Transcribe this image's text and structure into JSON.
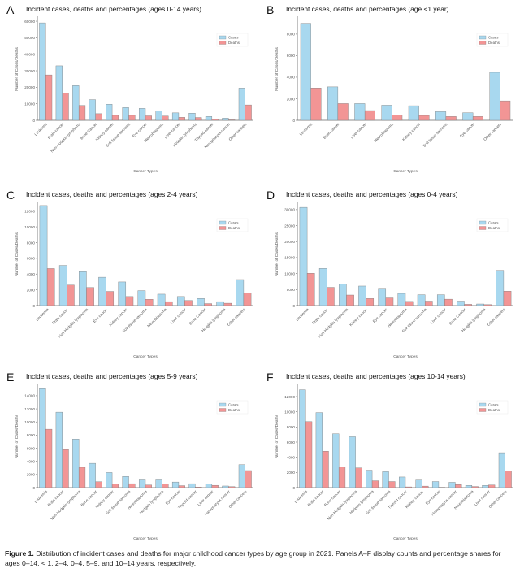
{
  "figure": {
    "caption_label": "Figure 1.",
    "caption_text": " Distribution of incident cases and deaths for major childhood cancer types by age group in 2021. Panels A–F display counts and percentage shares for ages 0–14, < 1, 2–4, 0–4, 5–9, and 10–14 years, respectively."
  },
  "colors": {
    "cases": "#a8d8ef",
    "deaths": "#f29595",
    "bar_edge": "#7a7a7a",
    "axis": "#666666"
  },
  "chart_data": [
    {
      "panel": "A",
      "type": "bar",
      "title": "Incident cases, deaths and percentages (ages 0-14 years)",
      "xlabel": "Cancer Types",
      "ylabel": "Number of Cases/Deaths",
      "ylim": [
        0,
        62000
      ],
      "yticks": [
        0,
        10000,
        20000,
        30000,
        40000,
        50000,
        60000
      ],
      "legend": "top-right",
      "grid": false,
      "values_note": "estimated from gridlines; percentage data labels illegible",
      "categories": [
        "Leukemia",
        "Brain cancer",
        "Non-Hodgkin lymphoma",
        "Bone Cancer",
        "Kidney cancer",
        "Soft tissue sarcoma",
        "Eye cancer",
        "Neuroblastoma",
        "Liver cancer",
        "Hodgkin lymphoma",
        "Thyroid cancer",
        "Nasopharynx cancer",
        "Other cancers"
      ],
      "series": [
        {
          "name": "Cases",
          "values": [
            59000,
            33000,
            21000,
            12500,
            9700,
            7700,
            7200,
            5800,
            4500,
            4300,
            2300,
            1300,
            19500
          ]
        },
        {
          "name": "Deaths",
          "values": [
            27500,
            16500,
            9000,
            4000,
            3000,
            3000,
            2700,
            2600,
            1800,
            1700,
            600,
            300,
            9300
          ]
        }
      ]
    },
    {
      "panel": "B",
      "type": "bar",
      "title": "Incident cases, deaths and percentages (age <1 year)",
      "xlabel": "Cancer Types",
      "ylabel": "Number of Cases/Deaths",
      "ylim": [
        0,
        9500
      ],
      "yticks": [
        0,
        2000,
        4000,
        6000,
        8000
      ],
      "legend": "top-right",
      "grid": false,
      "values_note": "estimated from gridlines; percentage data labels illegible",
      "categories": [
        "Leukemia",
        "Brain cancer",
        "Liver cancer",
        "Neuroblastoma",
        "Kidney cancer",
        "Soft tissue sarcoma",
        "Eye cancer",
        "Other cancers"
      ],
      "series": [
        {
          "name": "Cases",
          "values": [
            9000,
            3100,
            1550,
            1400,
            1350,
            800,
            700,
            4450
          ]
        },
        {
          "name": "Deaths",
          "values": [
            3000,
            1550,
            900,
            500,
            450,
            350,
            350,
            1800
          ]
        }
      ]
    },
    {
      "panel": "C",
      "type": "bar",
      "title": "Incident cases, deaths and percentages (ages 2-4 years)",
      "xlabel": "Cancer Types",
      "ylabel": "Number of Cases/Deaths",
      "ylim": [
        0,
        13000
      ],
      "yticks": [
        0,
        2000,
        4000,
        6000,
        8000,
        10000,
        12000
      ],
      "legend": "top-right",
      "grid": false,
      "values_note": "estimated from gridlines; percentage data labels illegible",
      "categories": [
        "Leukemia",
        "Brain cancer",
        "Non-Hodgkin lymphoma",
        "Eye cancer",
        "Kidney cancer",
        "Soft tissue sarcoma",
        "Neuroblastoma",
        "Liver cancer",
        "Bone Cancer",
        "Hodgkin lymphoma",
        "Other cancers"
      ],
      "series": [
        {
          "name": "Cases",
          "values": [
            12700,
            5100,
            4300,
            3600,
            3000,
            1900,
            1450,
            1150,
            900,
            500,
            3300
          ]
        },
        {
          "name": "Deaths",
          "values": [
            4700,
            2600,
            2300,
            1800,
            1150,
            800,
            500,
            650,
            250,
            300,
            1600
          ]
        }
      ]
    },
    {
      "panel": "D",
      "type": "bar",
      "title": "Incident cases, deaths and percentages (ages 0-4 years)",
      "xlabel": "Cancer Types",
      "ylabel": "Number of Cases/Deaths",
      "ylim": [
        0,
        32000
      ],
      "yticks": [
        0,
        5000,
        10000,
        15000,
        20000,
        25000,
        30000
      ],
      "legend": "top-right",
      "grid": false,
      "values_note": "estimated from gridlines; percentage data labels illegible",
      "categories": [
        "Leukemia",
        "Brain cancer",
        "Non-Hodgkin lymphoma",
        "Kidney cancer",
        "Eye cancer",
        "Neuroblastoma",
        "Soft tissue sarcoma",
        "Liver cancer",
        "Bone Cancer",
        "Hodgkin lymphoma",
        "Other cancers"
      ],
      "series": [
        {
          "name": "Cases",
          "values": [
            30700,
            11600,
            6700,
            6100,
            5400,
            3800,
            3400,
            3400,
            1400,
            500,
            11000
          ]
        },
        {
          "name": "Deaths",
          "values": [
            10100,
            5700,
            3300,
            2200,
            2400,
            1300,
            1400,
            2000,
            400,
            300,
            4500
          ]
        }
      ]
    },
    {
      "panel": "E",
      "type": "bar",
      "title": "Incident cases, deaths and percentages (ages 5-9 years)",
      "xlabel": "Cancer Types",
      "ylabel": "Number of Cases/Deaths",
      "ylim": [
        0,
        15600
      ],
      "yticks": [
        0,
        2000,
        4000,
        6000,
        8000,
        10000,
        12000,
        14000
      ],
      "legend": "top-right",
      "grid": false,
      "values_note": "estimated from gridlines; percentage data labels illegible",
      "categories": [
        "Leukemia",
        "Brain cancer",
        "Non-Hodgkin lymphoma",
        "Bone cancer",
        "Kidney cancer",
        "Soft tissue sarcoma",
        "Neuroblastoma",
        "Hodgkin lymphoma",
        "Eye cancer",
        "Thyroid cancer",
        "Liver cancer",
        "Nasopharynx cancer",
        "Other cancers"
      ],
      "series": [
        {
          "name": "Cases",
          "values": [
            15200,
            11500,
            7400,
            3700,
            2300,
            1700,
            1300,
            1300,
            850,
            600,
            550,
            250,
            3500
          ]
        },
        {
          "name": "Deaths",
          "values": [
            8900,
            5800,
            3100,
            900,
            550,
            600,
            400,
            550,
            300,
            100,
            350,
            150,
            2600
          ]
        }
      ]
    },
    {
      "panel": "F",
      "type": "bar",
      "title": "Incident cases, deaths and percentages (ages 10-14 years)",
      "xlabel": "Cancer Types",
      "ylabel": "Number of Cases/Deaths",
      "ylim": [
        0,
        13500
      ],
      "yticks": [
        0,
        2000,
        4000,
        6000,
        8000,
        10000,
        12000
      ],
      "legend": "top-right",
      "grid": false,
      "values_note": "estimated from gridlines; percentage data labels illegible",
      "categories": [
        "Leukemia",
        "Brain cancer",
        "Bone cancer",
        "Non-Hodgkin lymphoma",
        "Hodgkin lymphoma",
        "Soft tissue sarcoma",
        "Thyroid cancer",
        "Kidney cancer",
        "Eye cancer",
        "Nasopharynx cancer",
        "Neuroblastoma",
        "Liver cancer",
        "Other cancers"
      ],
      "series": [
        {
          "name": "Cases",
          "values": [
            12900,
            9900,
            7100,
            6700,
            2300,
            2100,
            1400,
            1100,
            800,
            700,
            300,
            300,
            4600
          ]
        },
        {
          "name": "Deaths",
          "values": [
            8700,
            4800,
            2700,
            2600,
            900,
            800,
            100,
            200,
            50,
            400,
            150,
            350,
            2200
          ]
        }
      ]
    }
  ]
}
